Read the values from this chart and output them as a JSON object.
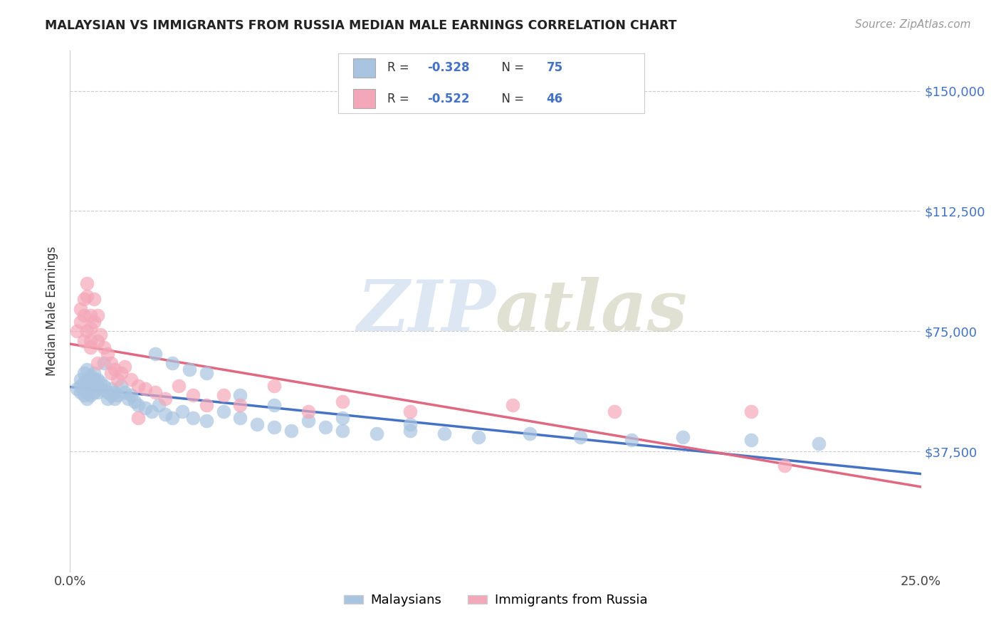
{
  "title": "MALAYSIAN VS IMMIGRANTS FROM RUSSIA MEDIAN MALE EARNINGS CORRELATION CHART",
  "source": "Source: ZipAtlas.com",
  "ylabel": "Median Male Earnings",
  "xlim": [
    0.0,
    0.25
  ],
  "ylim": [
    0,
    162500
  ],
  "yticks": [
    0,
    37500,
    75000,
    112500,
    150000
  ],
  "ytick_labels": [
    "",
    "$37,500",
    "$75,000",
    "$112,500",
    "$150,000"
  ],
  "xticks": [
    0.0,
    0.05,
    0.1,
    0.15,
    0.2,
    0.25
  ],
  "xtick_labels": [
    "0.0%",
    "",
    "",
    "",
    "",
    "25.0%"
  ],
  "blue_color": "#a8c4e0",
  "pink_color": "#f4a7b9",
  "line_blue": "#4472c4",
  "line_pink": "#e06880",
  "text_color": "#4472c4",
  "legend_R_blue": "-0.328",
  "legend_N_blue": "75",
  "legend_R_pink": "-0.522",
  "legend_N_pink": "46",
  "blue_x": [
    0.002,
    0.003,
    0.003,
    0.003,
    0.004,
    0.004,
    0.004,
    0.004,
    0.005,
    0.005,
    0.005,
    0.005,
    0.005,
    0.006,
    0.006,
    0.006,
    0.006,
    0.007,
    0.007,
    0.007,
    0.007,
    0.008,
    0.008,
    0.008,
    0.009,
    0.009,
    0.01,
    0.01,
    0.011,
    0.011,
    0.012,
    0.012,
    0.013,
    0.013,
    0.014,
    0.015,
    0.016,
    0.017,
    0.018,
    0.019,
    0.02,
    0.022,
    0.024,
    0.026,
    0.028,
    0.03,
    0.033,
    0.036,
    0.04,
    0.045,
    0.05,
    0.055,
    0.06,
    0.065,
    0.07,
    0.075,
    0.08,
    0.09,
    0.1,
    0.11,
    0.12,
    0.135,
    0.15,
    0.165,
    0.18,
    0.2,
    0.22,
    0.025,
    0.03,
    0.035,
    0.04,
    0.05,
    0.06,
    0.08,
    0.1
  ],
  "blue_y": [
    57000,
    60000,
    58000,
    56000,
    62000,
    59000,
    57000,
    55000,
    63000,
    60000,
    58000,
    56000,
    54000,
    61000,
    59000,
    57000,
    55000,
    62000,
    60000,
    58000,
    56000,
    60000,
    58000,
    56000,
    59000,
    57000,
    65000,
    58000,
    56000,
    54000,
    57000,
    55000,
    56000,
    54000,
    55000,
    58000,
    56000,
    54000,
    55000,
    53000,
    52000,
    51000,
    50000,
    52000,
    49000,
    48000,
    50000,
    48000,
    47000,
    50000,
    48000,
    46000,
    45000,
    44000,
    47000,
    45000,
    44000,
    43000,
    44000,
    43000,
    42000,
    43000,
    42000,
    41000,
    42000,
    41000,
    40000,
    68000,
    65000,
    63000,
    62000,
    55000,
    52000,
    48000,
    46000
  ],
  "pink_x": [
    0.002,
    0.003,
    0.003,
    0.004,
    0.004,
    0.005,
    0.005,
    0.005,
    0.006,
    0.006,
    0.006,
    0.007,
    0.007,
    0.008,
    0.008,
    0.009,
    0.01,
    0.011,
    0.012,
    0.013,
    0.014,
    0.015,
    0.016,
    0.018,
    0.02,
    0.022,
    0.025,
    0.028,
    0.032,
    0.036,
    0.04,
    0.045,
    0.05,
    0.06,
    0.07,
    0.08,
    0.1,
    0.13,
    0.16,
    0.2,
    0.21,
    0.004,
    0.006,
    0.008,
    0.012,
    0.02
  ],
  "pink_y": [
    75000,
    82000,
    78000,
    85000,
    80000,
    90000,
    86000,
    75000,
    80000,
    76000,
    72000,
    85000,
    78000,
    80000,
    72000,
    74000,
    70000,
    68000,
    65000,
    63000,
    60000,
    62000,
    64000,
    60000,
    58000,
    57000,
    56000,
    54000,
    58000,
    55000,
    52000,
    55000,
    52000,
    58000,
    50000,
    53000,
    50000,
    52000,
    50000,
    50000,
    33000,
    72000,
    70000,
    65000,
    62000,
    48000
  ]
}
